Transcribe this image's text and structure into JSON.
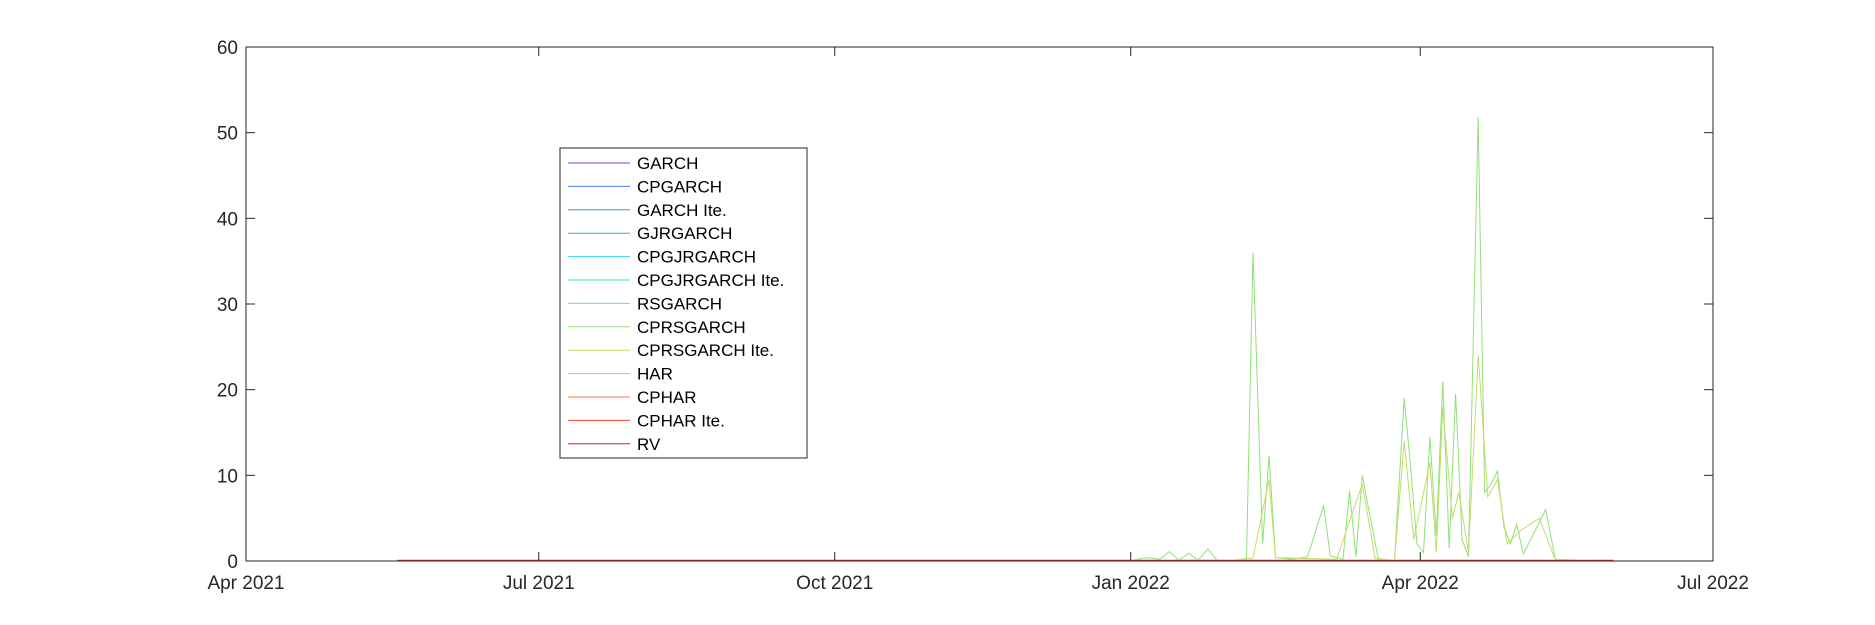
{
  "chart_data": {
    "type": "line",
    "title": "",
    "xlabel": "",
    "ylabel": "",
    "xlim": [
      "2021-04-01",
      "2022-07-01"
    ],
    "ylim": [
      0,
      60
    ],
    "grid": false,
    "legend_position": "upper-left-inside",
    "x_ticks": [
      {
        "date": "2021-04-01",
        "label": "Apr 2021"
      },
      {
        "date": "2021-07-01",
        "label": "Jul 2021"
      },
      {
        "date": "2021-10-01",
        "label": "Oct 2021"
      },
      {
        "date": "2022-01-01",
        "label": "Jan 2022"
      },
      {
        "date": "2022-04-01",
        "label": "Apr 2022"
      },
      {
        "date": "2022-07-01",
        "label": "Jul 2022"
      }
    ],
    "y_ticks": [
      0,
      10,
      20,
      30,
      40,
      50,
      60
    ],
    "series": [
      {
        "name": "GARCH",
        "color": "#5a4ee8",
        "points": [
          [
            "2021-05-18",
            0.1
          ],
          [
            "2022-05-31",
            0.1
          ]
        ]
      },
      {
        "name": "CPGARCH",
        "color": "#4a7be8",
        "points": [
          [
            "2021-05-18",
            0.1
          ],
          [
            "2022-05-31",
            0.1
          ]
        ]
      },
      {
        "name": "GARCH Ite.",
        "color": "#3a95d8",
        "points": [
          [
            "2021-05-18",
            0.1
          ],
          [
            "2022-05-31",
            0.1
          ]
        ]
      },
      {
        "name": "GJRGARCH",
        "color": "#2fb0d0",
        "points": [
          [
            "2021-05-18",
            0.1
          ],
          [
            "2022-05-31",
            0.1
          ]
        ]
      },
      {
        "name": "CPGJRGARCH",
        "color": "#2fd4e0",
        "points": [
          [
            "2021-05-18",
            0.1
          ],
          [
            "2022-05-31",
            0.1
          ]
        ]
      },
      {
        "name": "CPGJRGARCH Ite.",
        "color": "#3ee0b8",
        "points": [
          [
            "2021-05-18",
            0.1
          ],
          [
            "2022-05-31",
            0.1
          ]
        ]
      },
      {
        "name": "RSGARCH",
        "color": "#5ee89a",
        "points": [
          [
            "2021-05-18",
            0.1
          ],
          [
            "2022-05-31",
            0.1
          ]
        ]
      },
      {
        "name": "CPRSGARCH",
        "color": "#8fe07a",
        "points": [
          [
            "2021-05-18",
            0.0
          ],
          [
            "2021-12-31",
            0.0
          ],
          [
            "2022-01-06",
            0.4
          ],
          [
            "2022-01-10",
            0.2
          ],
          [
            "2022-01-13",
            1.1
          ],
          [
            "2022-01-16",
            0.1
          ],
          [
            "2022-01-19",
            0.9
          ],
          [
            "2022-01-22",
            0.1
          ],
          [
            "2022-01-25",
            1.4
          ],
          [
            "2022-01-28",
            0.0
          ],
          [
            "2022-02-03",
            0.1
          ],
          [
            "2022-02-06",
            0.3
          ],
          [
            "2022-02-08",
            36.0
          ],
          [
            "2022-02-11",
            2.0
          ],
          [
            "2022-02-13",
            12.3
          ],
          [
            "2022-02-15",
            0.4
          ],
          [
            "2022-02-20",
            0.2
          ],
          [
            "2022-02-25",
            0.5
          ],
          [
            "2022-03-02",
            6.5
          ],
          [
            "2022-03-04",
            0.6
          ],
          [
            "2022-03-08",
            0.2
          ],
          [
            "2022-03-10",
            8.2
          ],
          [
            "2022-03-12",
            0.5
          ],
          [
            "2022-03-14",
            10.0
          ],
          [
            "2022-03-16",
            6.0
          ],
          [
            "2022-03-19",
            0.2
          ],
          [
            "2022-03-24",
            0.1
          ],
          [
            "2022-03-27",
            19.0
          ],
          [
            "2022-03-29",
            11.0
          ],
          [
            "2022-03-31",
            2.0
          ],
          [
            "2022-04-02",
            1.0
          ],
          [
            "2022-04-04",
            14.5
          ],
          [
            "2022-04-06",
            3.0
          ],
          [
            "2022-04-08",
            21.0
          ],
          [
            "2022-04-10",
            1.5
          ],
          [
            "2022-04-12",
            19.5
          ],
          [
            "2022-04-14",
            2.5
          ],
          [
            "2022-04-16",
            0.5
          ],
          [
            "2022-04-19",
            51.8
          ],
          [
            "2022-04-21",
            8.0
          ],
          [
            "2022-04-23",
            9.0
          ],
          [
            "2022-04-25",
            10.5
          ],
          [
            "2022-04-27",
            4.0
          ],
          [
            "2022-04-29",
            2.0
          ],
          [
            "2022-05-01",
            4.3
          ],
          [
            "2022-05-03",
            0.8
          ],
          [
            "2022-05-06",
            3.0
          ],
          [
            "2022-05-10",
            6.0
          ],
          [
            "2022-05-13",
            0.2
          ],
          [
            "2022-05-31",
            0.0
          ]
        ]
      },
      {
        "name": "CPRSGARCH Ite.",
        "color": "#c4dc66",
        "points": [
          [
            "2021-05-18",
            0.0
          ],
          [
            "2022-01-28",
            0.0
          ],
          [
            "2022-02-08",
            0.3
          ],
          [
            "2022-02-13",
            9.5
          ],
          [
            "2022-02-15",
            0.4
          ],
          [
            "2022-03-06",
            0.2
          ],
          [
            "2022-03-14",
            9.0
          ],
          [
            "2022-03-18",
            0.3
          ],
          [
            "2022-03-24",
            0.1
          ],
          [
            "2022-03-27",
            14.0
          ],
          [
            "2022-03-30",
            2.5
          ],
          [
            "2022-04-04",
            11.5
          ],
          [
            "2022-04-06",
            1.0
          ],
          [
            "2022-04-08",
            18.0
          ],
          [
            "2022-04-11",
            5.0
          ],
          [
            "2022-04-13",
            8.0
          ],
          [
            "2022-04-16",
            1.0
          ],
          [
            "2022-04-19",
            24.0
          ],
          [
            "2022-04-22",
            7.5
          ],
          [
            "2022-04-25",
            9.5
          ],
          [
            "2022-04-28",
            2.0
          ],
          [
            "2022-05-02",
            3.5
          ],
          [
            "2022-05-08",
            5.0
          ],
          [
            "2022-05-13",
            0.1
          ],
          [
            "2022-05-31",
            0.0
          ]
        ]
      },
      {
        "name": "HAR",
        "color": "#f0b04a",
        "points": [
          [
            "2021-05-18",
            0.05
          ],
          [
            "2022-05-31",
            0.05
          ]
        ]
      },
      {
        "name": "CPHAR",
        "color": "#f08040",
        "points": [
          [
            "2021-05-18",
            0.05
          ],
          [
            "2022-05-31",
            0.05
          ]
        ]
      },
      {
        "name": "CPHAR Ite.",
        "color": "#f04a30",
        "points": [
          [
            "2021-05-18",
            0.05
          ],
          [
            "2022-05-31",
            0.05
          ]
        ]
      },
      {
        "name": "RV",
        "color": "#e81818",
        "points": [
          [
            "2021-05-18",
            0.05
          ],
          [
            "2022-05-31",
            0.05
          ]
        ]
      }
    ]
  }
}
